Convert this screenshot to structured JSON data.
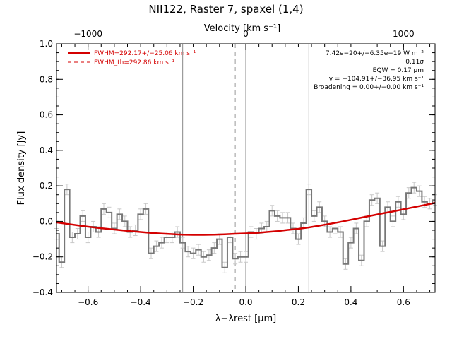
{
  "title": "NII122, Raster 7, spaxel (1,4)",
  "chart_data": {
    "type": "line",
    "title": "NII122, Raster 7, spaxel (1,4)",
    "xlabel": "λ−λrest [μm]",
    "x2label": "Velocity [km s⁻¹]",
    "ylabel": "Flux density [Jy]",
    "xlim": [
      -0.72,
      0.72
    ],
    "ylim": [
      -0.4,
      1.0
    ],
    "x_ticks": [
      -0.6,
      -0.4,
      -0.2,
      0.0,
      0.2,
      0.4,
      0.6
    ],
    "x_tick_labels": [
      "−0.6",
      "−0.4",
      "−0.2",
      "0.0",
      "0.2",
      "0.4",
      "0.6"
    ],
    "y_ticks": [
      -0.4,
      -0.2,
      0.0,
      0.2,
      0.4,
      0.6,
      0.8,
      1.0
    ],
    "y_tick_labels": [
      "−0.4",
      "−0.2",
      "0.0",
      "0.2",
      "0.4",
      "0.6",
      "0.8",
      "1.0"
    ],
    "top_ticks": [
      {
        "x": -0.6,
        "label": "−1000"
      },
      {
        "x": 0.0,
        "label": "0"
      },
      {
        "x": 0.6,
        "label": "1000"
      }
    ],
    "vertical_lines": {
      "solid": [
        -0.24,
        0.0,
        0.24
      ],
      "dashed": [
        -0.04
      ]
    },
    "series": [
      {
        "name": "spectrum",
        "style": "steps",
        "color": "#777777",
        "x": [
          -0.72,
          -0.7,
          -0.68,
          -0.66,
          -0.64,
          -0.62,
          -0.6,
          -0.58,
          -0.56,
          -0.54,
          -0.52,
          -0.5,
          -0.48,
          -0.46,
          -0.44,
          -0.42,
          -0.4,
          -0.38,
          -0.36,
          -0.34,
          -0.32,
          -0.3,
          -0.28,
          -0.26,
          -0.24,
          -0.22,
          -0.2,
          -0.18,
          -0.16,
          -0.14,
          -0.12,
          -0.1,
          -0.08,
          -0.06,
          -0.04,
          -0.02,
          0.0,
          0.02,
          0.04,
          0.06,
          0.08,
          0.1,
          0.12,
          0.14,
          0.16,
          0.18,
          0.2,
          0.22,
          0.24,
          0.26,
          0.28,
          0.3,
          0.32,
          0.34,
          0.36,
          0.38,
          0.4,
          0.42,
          0.44,
          0.46,
          0.48,
          0.5,
          0.52,
          0.54,
          0.56,
          0.58,
          0.6,
          0.62,
          0.64,
          0.66,
          0.68,
          0.7,
          0.72
        ],
        "values": [
          -0.07,
          -0.23,
          0.18,
          -0.09,
          -0.07,
          0.03,
          -0.09,
          -0.03,
          -0.06,
          0.07,
          0.05,
          -0.04,
          0.04,
          0.0,
          -0.06,
          -0.05,
          0.04,
          0.07,
          -0.18,
          -0.14,
          -0.12,
          -0.09,
          -0.09,
          -0.06,
          -0.12,
          -0.17,
          -0.18,
          -0.16,
          -0.2,
          -0.19,
          -0.15,
          -0.1,
          -0.26,
          -0.09,
          -0.21,
          -0.2,
          -0.2,
          -0.06,
          -0.07,
          -0.04,
          -0.03,
          0.06,
          0.03,
          0.02,
          0.02,
          -0.04,
          -0.1,
          -0.01,
          0.18,
          0.03,
          0.08,
          0.0,
          -0.06,
          -0.04,
          -0.06,
          -0.24,
          -0.12,
          -0.04,
          -0.22,
          0.0,
          0.12,
          0.13,
          -0.14,
          0.08,
          0.0,
          0.11,
          0.04,
          0.16,
          0.19,
          0.17,
          0.11,
          0.1,
          0.12
        ],
        "errors": 0.03
      },
      {
        "name": "FWHM=292.17+/−25.06 km s⁻¹",
        "style": "line",
        "color": "#d40000",
        "x": [
          -0.72,
          -0.68,
          -0.64,
          -0.6,
          -0.56,
          -0.52,
          -0.48,
          -0.44,
          -0.4,
          -0.36,
          -0.32,
          -0.28,
          -0.24,
          -0.2,
          -0.16,
          -0.12,
          -0.08,
          -0.04,
          0.0,
          0.04,
          0.08,
          0.12,
          0.16,
          0.2,
          0.24,
          0.28,
          0.32,
          0.36,
          0.4,
          0.44,
          0.48,
          0.52,
          0.56,
          0.6,
          0.64,
          0.68,
          0.72
        ],
        "values": [
          -0.006,
          -0.014,
          -0.022,
          -0.03,
          -0.037,
          -0.043,
          -0.049,
          -0.055,
          -0.06,
          -0.065,
          -0.069,
          -0.072,
          -0.075,
          -0.076,
          -0.076,
          -0.075,
          -0.073,
          -0.07,
          -0.068,
          -0.065,
          -0.06,
          -0.055,
          -0.048,
          -0.042,
          -0.034,
          -0.024,
          -0.014,
          -0.003,
          0.009,
          0.021,
          0.033,
          0.045,
          0.056,
          0.068,
          0.08,
          0.092,
          0.104
        ]
      }
    ],
    "legend": {
      "placement": "top-left",
      "entries": [
        {
          "label": "FWHM=292.17+/−25.06 km s⁻¹",
          "style": "solid",
          "color": "#d40000"
        },
        {
          "label": "FWHM_th=292.86 km s⁻¹",
          "style": "dashed",
          "color": "#d40000"
        }
      ]
    },
    "annotations": [
      "7.42e−20+/−6.35e−19 W m⁻²",
      "0.11σ",
      "EQW = 0.17 μm",
      "v = −104.91+/−36.95 km s⁻¹",
      "Broadening = 0.00+/−0.00 km s⁻¹"
    ]
  }
}
